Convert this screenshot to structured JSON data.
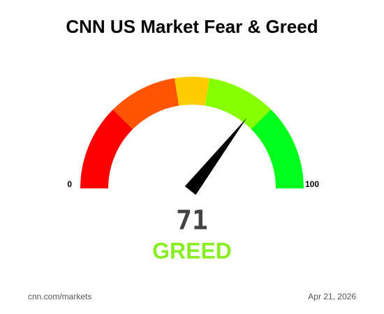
{
  "chart_data": {
    "type": "gauge",
    "title": "CNN US Market Fear & Greed",
    "value": 71,
    "rating": "GREED",
    "rating_color": "#88ee22",
    "xlim": [
      0,
      100
    ],
    "xticks": [
      0,
      100
    ],
    "bands": [
      {
        "from": 0,
        "to": 25,
        "color": "#ff0000"
      },
      {
        "from": 25,
        "to": 45,
        "color": "#ff5500"
      },
      {
        "from": 45,
        "to": 55,
        "color": "#ffcc00"
      },
      {
        "from": 55,
        "to": 75,
        "color": "#88ff00"
      },
      {
        "from": 75,
        "to": 100,
        "color": "#00ff1a"
      }
    ],
    "source": "cnn.com/markets",
    "date": "Apr 21, 2026"
  }
}
